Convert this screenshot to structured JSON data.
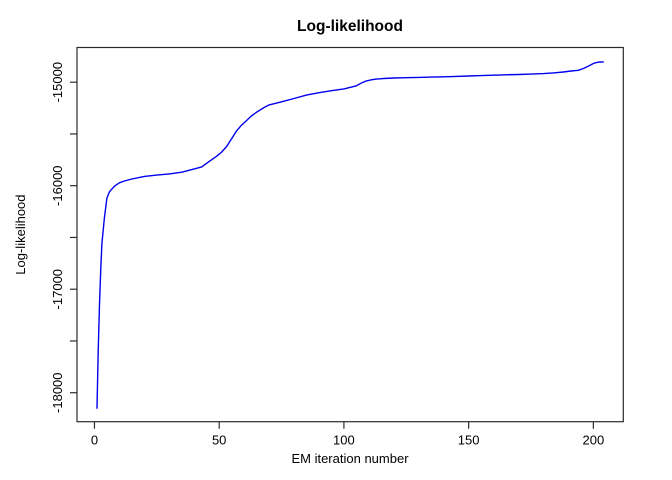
{
  "chart_data": {
    "type": "line",
    "title": "Log-likelihood",
    "xlabel": "EM iteration number",
    "ylabel": "Log-likelihood",
    "legend": "none",
    "grid": false,
    "background_color": "#ffffff",
    "line_color": "#0000ee",
    "axis_color": "#2b2b2b",
    "text_color": "#000000",
    "xlim": [
      -7,
      212
    ],
    "ylim": [
      -18280,
      -14665
    ],
    "x_ticks": {
      "values": [
        0,
        50,
        100,
        150,
        200
      ],
      "labels": [
        "0",
        "50",
        "100",
        "150",
        "200"
      ]
    },
    "y_ticks": {
      "values": [
        -18000,
        -17500,
        -17000,
        -16500,
        -16000,
        -15500,
        -15000
      ],
      "labels": [
        "-18000",
        "",
        "-17000",
        "",
        "-16000",
        "",
        "-15000"
      ]
    },
    "series": [
      {
        "name": "log-likelihood",
        "x": [
          1,
          1.5,
          2,
          2.5,
          3,
          3.5,
          4,
          5,
          6,
          8,
          10,
          12,
          15,
          20,
          25,
          30,
          35,
          40,
          43,
          46,
          49,
          51,
          53,
          55,
          57,
          59,
          61,
          63,
          65,
          68,
          70,
          75,
          80,
          85,
          90,
          95,
          100,
          103,
          105,
          107,
          109,
          111,
          113,
          116,
          120,
          125,
          130,
          135,
          140,
          145,
          150,
          155,
          160,
          165,
          170,
          175,
          180,
          184,
          188,
          191,
          194,
          196,
          198,
          200,
          201,
          202,
          203,
          204
        ],
        "y": [
          -18150,
          -17600,
          -17150,
          -16820,
          -16560,
          -16430,
          -16310,
          -16120,
          -16060,
          -16005,
          -15972,
          -15955,
          -15935,
          -15910,
          -15898,
          -15886,
          -15870,
          -15838,
          -15818,
          -15765,
          -15715,
          -15675,
          -15620,
          -15545,
          -15470,
          -15415,
          -15370,
          -15325,
          -15290,
          -15245,
          -15220,
          -15190,
          -15158,
          -15125,
          -15102,
          -15082,
          -15065,
          -15048,
          -15035,
          -15008,
          -14988,
          -14977,
          -14970,
          -14964,
          -14960,
          -14957,
          -14954,
          -14951,
          -14948,
          -14944,
          -14940,
          -14936,
          -14933,
          -14929,
          -14926,
          -14922,
          -14917,
          -14910,
          -14902,
          -14892,
          -14885,
          -14868,
          -14845,
          -14820,
          -14812,
          -14807,
          -14805,
          -14804
        ]
      }
    ]
  }
}
